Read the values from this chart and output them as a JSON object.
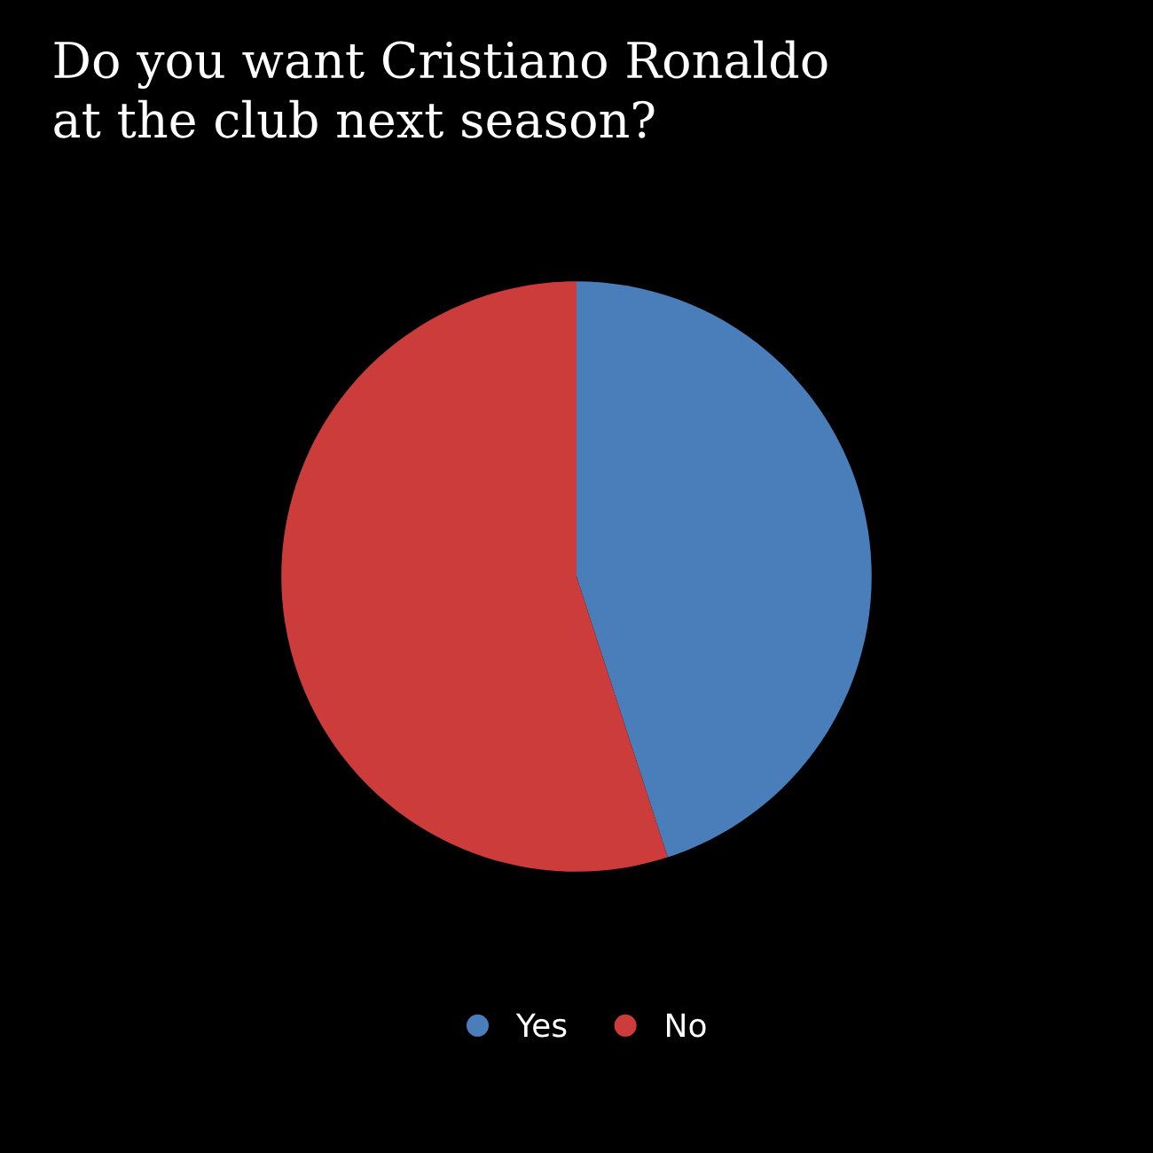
{
  "chart_data": {
    "type": "pie",
    "title": "Do you want Cristiano Ronaldo\nat the club next season?",
    "categories": [
      "Yes",
      "No"
    ],
    "values": [
      45,
      55
    ],
    "colors": [
      "#4a7ebb",
      "#cc3c3a"
    ],
    "legend": "bottom"
  }
}
